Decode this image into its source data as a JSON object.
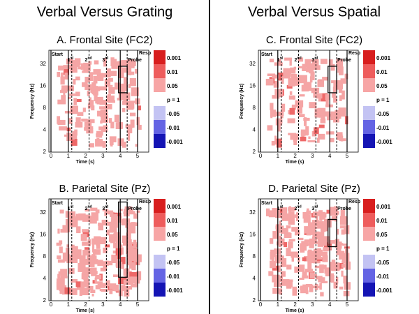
{
  "columns": [
    {
      "title": "Verbal Versus Grating",
      "panels": [
        {
          "title": "A. Frontal Site (FC2)"
        },
        {
          "title": "B. Parietal Site (Pz)"
        }
      ]
    },
    {
      "title": "Verbal Versus Spatial",
      "panels": [
        {
          "title": "C. Frontal Site (FC2)"
        },
        {
          "title": "D. Parietal Site (Pz)"
        }
      ]
    }
  ],
  "axes": {
    "y_label": "Frequency (Hz)",
    "x_label": "Time (s)",
    "yticks": [
      "32",
      "16",
      "8",
      "4",
      "2"
    ],
    "xticks": [
      "0",
      "1",
      "2",
      "3",
      "4",
      "5"
    ]
  },
  "events": {
    "start": "Start",
    "first": "1",
    "first_sup": "st",
    "second": "2",
    "second_sup": "nd",
    "third": "3",
    "third_sup": "rd",
    "probe": "Probe",
    "resp": "Resp"
  },
  "colorbar": [
    "0.001",
    "0.01",
    "0.05",
    "p = 1",
    "-0.05",
    "-0.01",
    "-0.001"
  ]
}
